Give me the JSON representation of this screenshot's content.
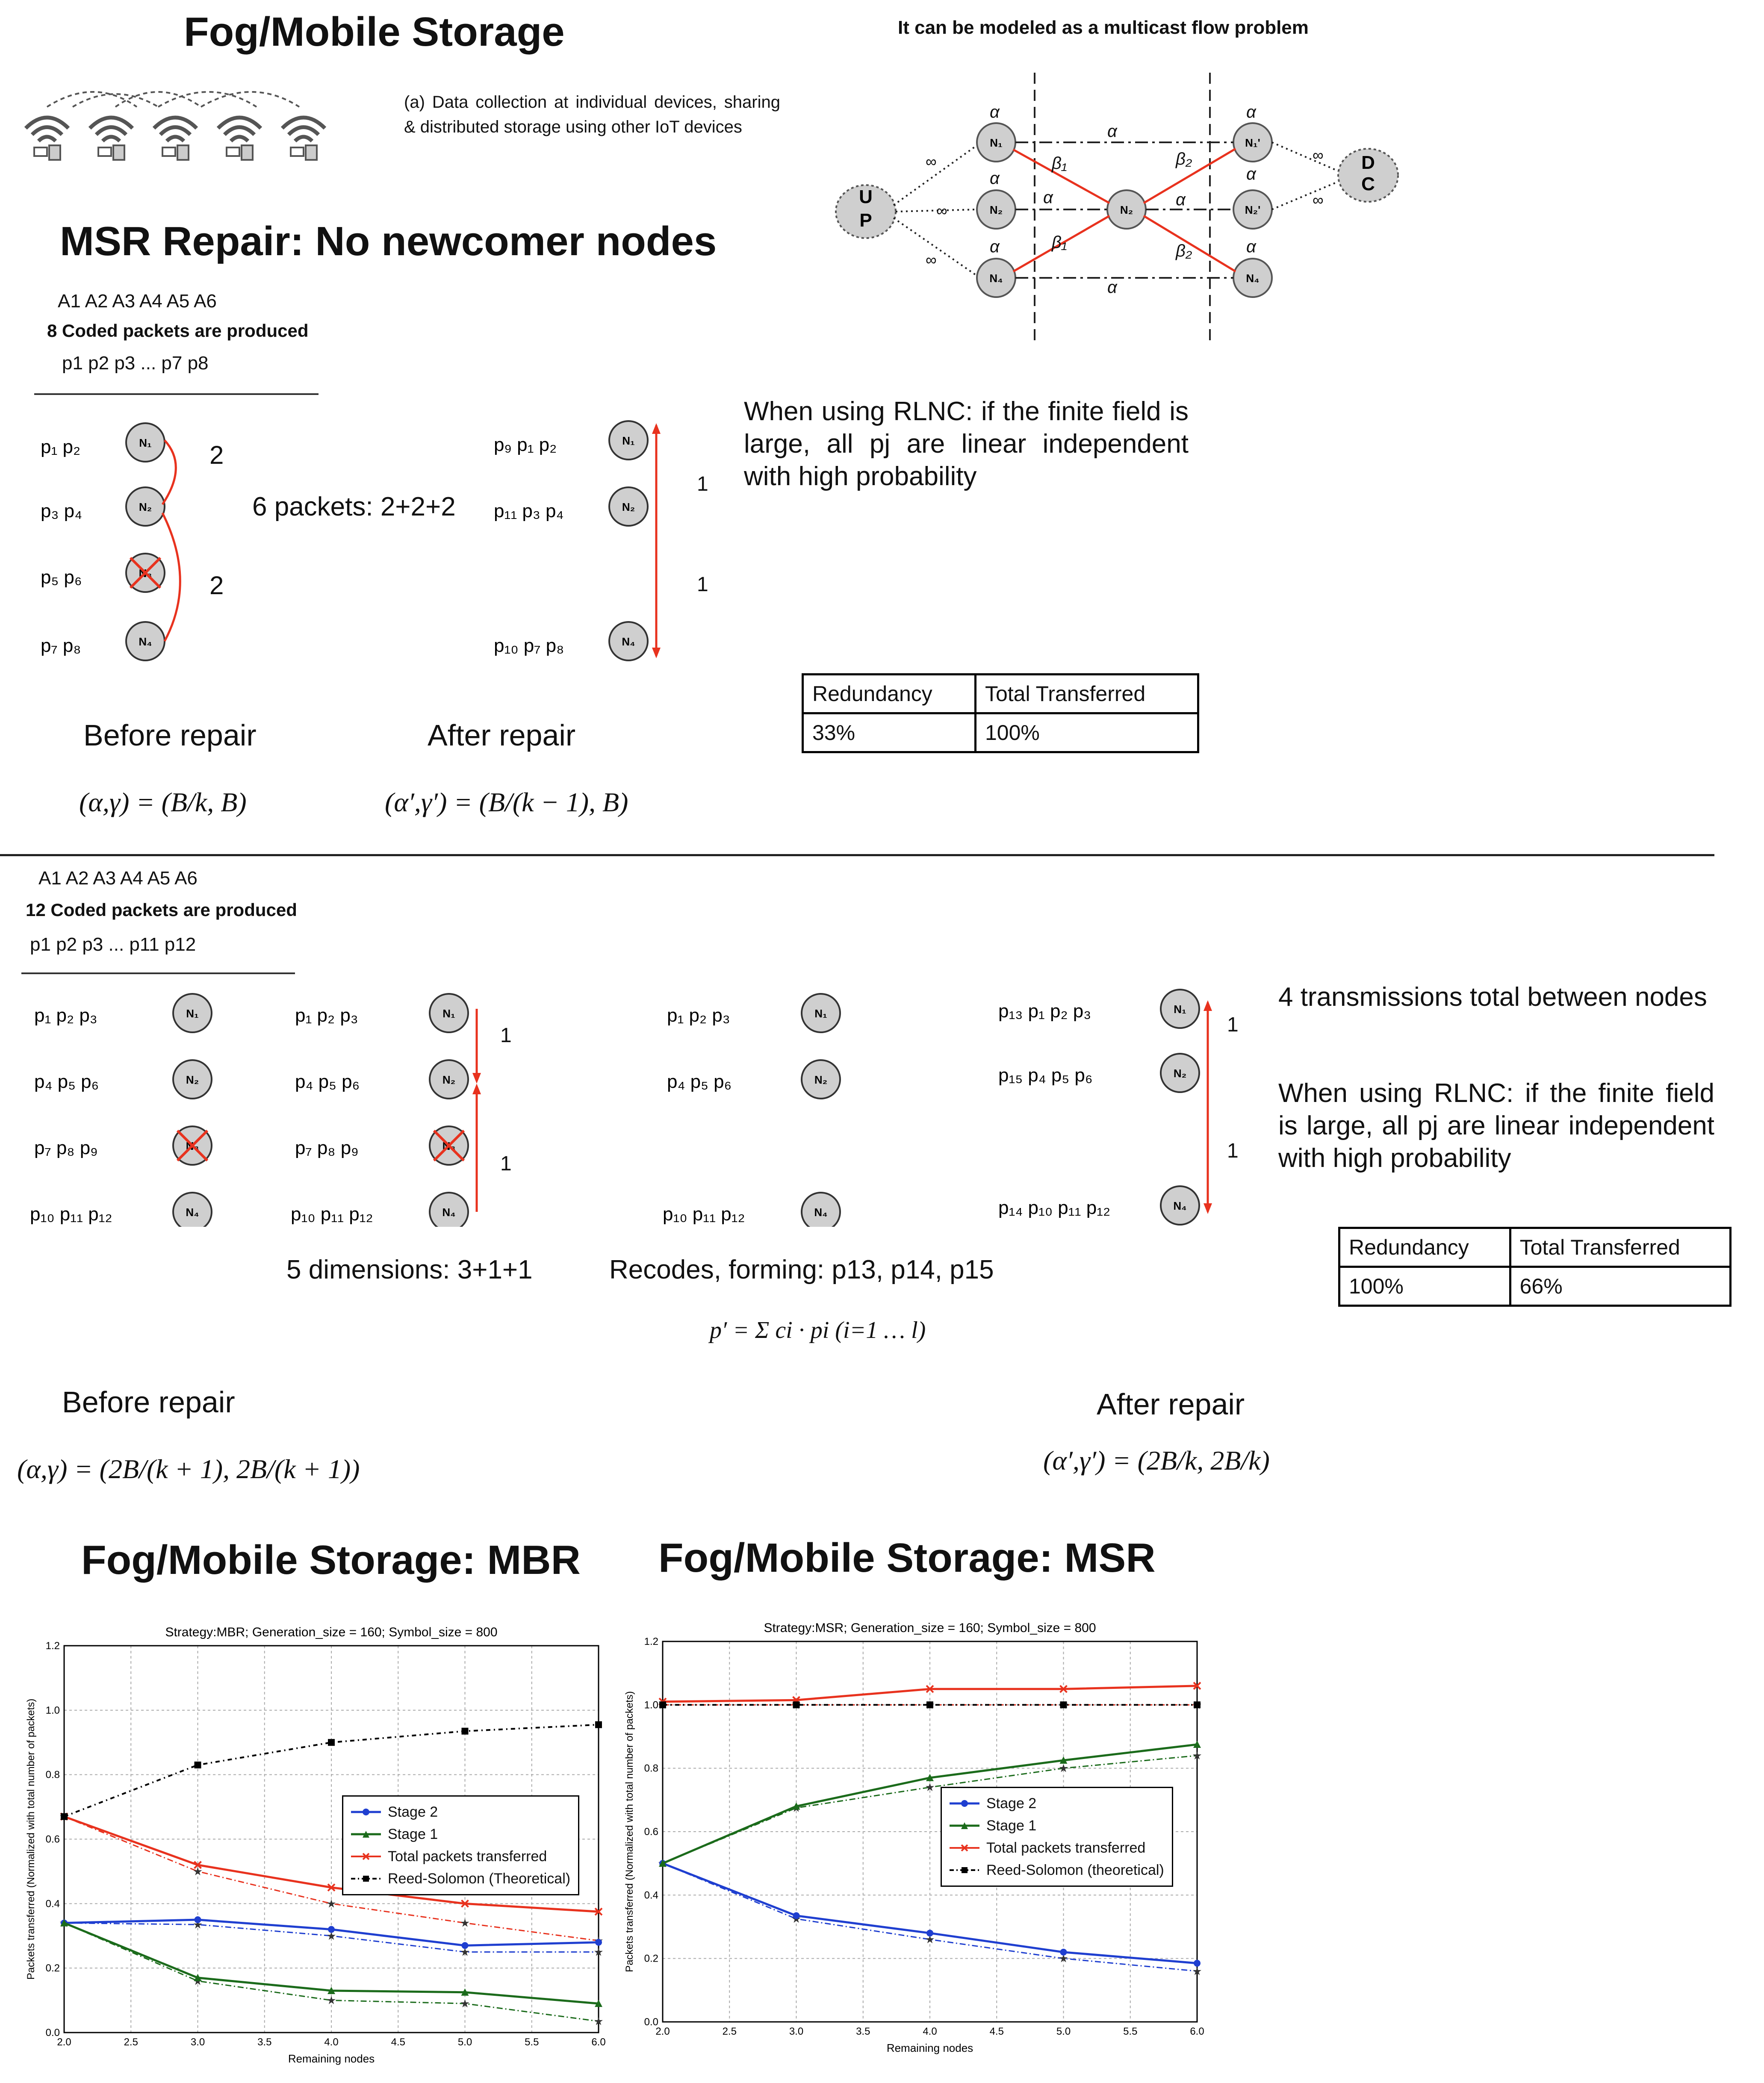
{
  "top_left": {
    "title": "Fog/Mobile Storage",
    "caption": "(a) Data collection at individual devices, sharing & distributed storage using other IoT devices"
  },
  "multicast": {
    "heading": "It can be modeled as a multicast flow problem",
    "source_node": "UP",
    "sink_node": "DC",
    "alpha": "α",
    "beta1": "β1",
    "beta2": "β2",
    "infinity": "∞"
  },
  "msr": {
    "title": "MSR Repair: No newcomer nodes",
    "sources": "A1 A2 A3 A4 A5 A6",
    "coded_caption": "8 Coded packets are produced",
    "packets": "p1 p2 p3 ... p7 p8",
    "transfer_count_a": "2",
    "transfer_count_b": "2",
    "six_packets": "6 packets: 2+2+2",
    "after_count_a": "1",
    "after_count_b": "1",
    "rlnc_note": "When using RLNC: if the finite field is large, all pj are linear independent with high probability",
    "table": {
      "col1": "Redundancy",
      "col2": "Total Transferred",
      "val1": "33%",
      "val2": "100%"
    },
    "before_repair": "Before repair",
    "after_repair": "After repair",
    "before_formula": "(α,γ) = (B/k, B)",
    "after_formula": "(α′,γ′) = (B/(k − 1), B)"
  },
  "mbr": {
    "sources": "A1 A2 A3 A4 A5 A6",
    "coded_caption": "12 Coded packets are produced",
    "packets": "p1 p2 p3 ... p11 p12",
    "count_1a": "1",
    "count_1b": "1",
    "count_2a": "1",
    "count_2b": "1",
    "dimensions": "5 dimensions: 3+1+1",
    "recodes": "Recodes, forming: p13, p14, p15",
    "recode_formula": "p′ = Σ ci · pi  (i=1 … l)",
    "transmissions": "4 transmissions total between nodes",
    "rlnc_note": "When using RLNC: if the finite field is large, all pj are linear independent with high probability",
    "table": {
      "col1": "Redundancy",
      "col2": "Total Transferred",
      "val1": "100%",
      "val2": "66%"
    },
    "before_repair": "Before repair",
    "after_repair": "After repair",
    "before_formula": "(α,γ) = (2B/(k + 1), 2B/(k + 1))",
    "after_formula": "(α′,γ′) = (2B/k, 2B/k)"
  },
  "chart_titles": {
    "mbr_heading": "Fog/Mobile Storage: MBR",
    "msr_heading": "Fog/Mobile Storage: MSR"
  },
  "chart_data": [
    {
      "type": "line",
      "title": "Strategy:MBR; Generation_size = 160; Symbol_size = 800",
      "xlabel": "Remaining nodes",
      "ylabel": "Packets transferred (Normalized with total number of packets)",
      "xlim": [
        2.0,
        6.0
      ],
      "ylim": [
        0.0,
        1.2
      ],
      "grid": true,
      "legend_position": "center-right",
      "x": [
        2,
        3,
        4,
        5,
        6
      ],
      "series": [
        {
          "name": "Stage 2",
          "color": "#1f3fd0",
          "marker": "circle",
          "values": [
            0.34,
            0.35,
            0.32,
            0.27,
            0.28
          ]
        },
        {
          "name": "Stage 1",
          "color": "#1b6b1b",
          "marker": "triangle",
          "values": [
            0.34,
            0.17,
            0.13,
            0.125,
            0.09
          ]
        },
        {
          "name": "Total packets transferred",
          "color": "#e8321e",
          "marker": "x",
          "values": [
            0.67,
            0.52,
            0.45,
            0.4,
            0.375
          ]
        },
        {
          "name": "Reed-Solomon (Theoretical)",
          "color": "#000000",
          "marker": "square",
          "values": [
            0.67,
            0.83,
            0.9,
            0.935,
            0.955
          ]
        }
      ],
      "theoretical_series": [
        {
          "color": "#1f3fd0",
          "values": [
            0.34,
            0.335,
            0.3,
            0.25,
            0.25
          ]
        },
        {
          "color": "#1b6b1b",
          "values": [
            0.34,
            0.16,
            0.1,
            0.09,
            0.035
          ]
        },
        {
          "color": "#e8321e",
          "values": [
            0.67,
            0.5,
            0.4,
            0.34,
            0.285
          ]
        }
      ]
    },
    {
      "type": "line",
      "title": "Strategy:MSR; Generation_size = 160; Symbol_size = 800",
      "xlabel": "Remaining nodes",
      "ylabel": "Packets transferred (Normalized with total number of packets)",
      "xlim": [
        2.0,
        6.0
      ],
      "ylim": [
        0.0,
        1.2
      ],
      "grid": true,
      "legend_position": "center-right",
      "x": [
        2,
        3,
        4,
        5,
        6
      ],
      "series": [
        {
          "name": "Stage 2",
          "color": "#1f3fd0",
          "marker": "circle",
          "values": [
            0.5,
            0.335,
            0.28,
            0.22,
            0.185
          ]
        },
        {
          "name": "Stage 1",
          "color": "#1b6b1b",
          "marker": "triangle",
          "values": [
            0.5,
            0.68,
            0.77,
            0.825,
            0.875
          ]
        },
        {
          "name": "Total packets transferred",
          "color": "#e8321e",
          "marker": "x",
          "values": [
            1.01,
            1.015,
            1.05,
            1.05,
            1.06
          ]
        },
        {
          "name": "Reed-Solomon (theoretical)",
          "color": "#000000",
          "marker": "square",
          "values": [
            1.0,
            1.0,
            1.0,
            1.0,
            1.0
          ]
        }
      ],
      "theoretical_series": [
        {
          "color": "#1f3fd0",
          "values": [
            0.5,
            0.325,
            0.26,
            0.2,
            0.16
          ]
        },
        {
          "color": "#1b6b1b",
          "values": [
            0.5,
            0.675,
            0.74,
            0.8,
            0.84
          ]
        },
        {
          "color": "#e8321e",
          "values": [
            1.0,
            1.0,
            1.0,
            1.0,
            1.0
          ]
        }
      ]
    }
  ]
}
